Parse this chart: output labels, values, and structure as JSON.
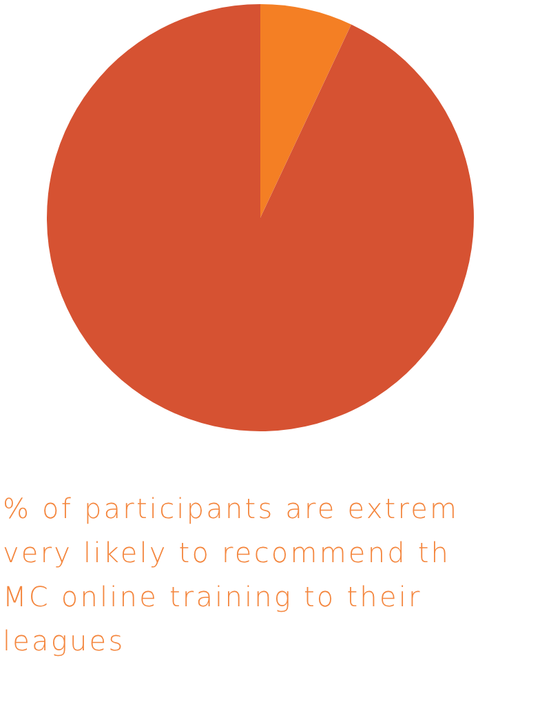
{
  "chart_data": {
    "type": "pie",
    "categories": [
      null,
      null
    ],
    "values": [
      7,
      93
    ],
    "colors": [
      "#f47f24",
      "#d65232"
    ],
    "annotations": [
      "% of participants are extrem",
      "very likely to recommend th",
      "MC online training to their",
      "leagues"
    ]
  }
}
